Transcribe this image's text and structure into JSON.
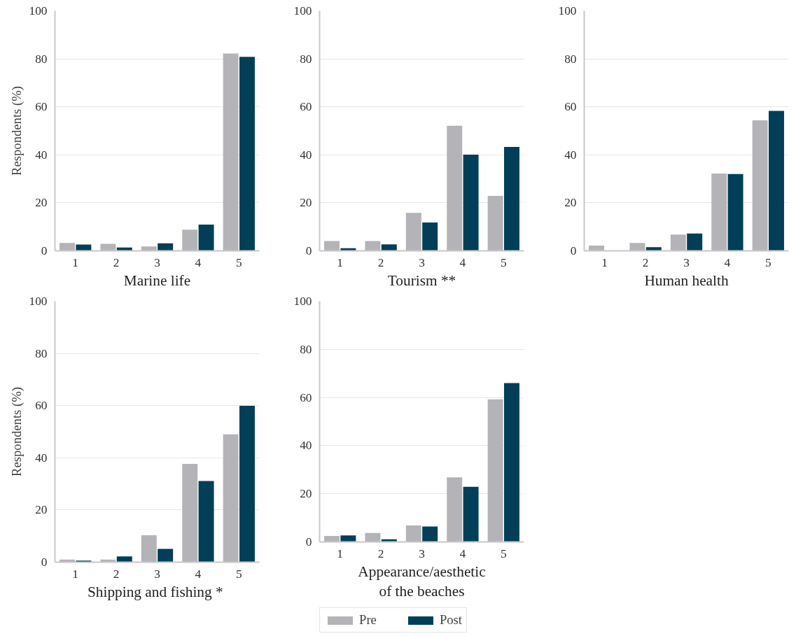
{
  "chart_data": [
    {
      "type": "bar",
      "xlabel": "Marine life",
      "ylabel": "Respondents (%)",
      "categories": [
        "1",
        "2",
        "3",
        "4",
        "5"
      ],
      "ylim": [
        0,
        100
      ],
      "yticks": [
        0,
        20,
        40,
        60,
        80,
        100
      ],
      "grid": "y",
      "series": [
        {
          "color": "#b4b4b8",
          "values": [
            3.3,
            2.9,
            1.8,
            8.8,
            82.2
          ]
        },
        {
          "color": "#003f57",
          "values": [
            2.6,
            1.4,
            3.1,
            10.9,
            80.8
          ]
        }
      ]
    },
    {
      "type": "bar",
      "xlabel": "Tourism **",
      "categories": [
        "1",
        "2",
        "3",
        "4",
        "5"
      ],
      "ylim": [
        0,
        100
      ],
      "yticks": [
        0,
        20,
        40,
        60,
        80,
        100
      ],
      "grid": "y",
      "series": [
        {
          "color": "#b4b4b8",
          "values": [
            4.1,
            4.1,
            15.8,
            52.1,
            22.9
          ]
        },
        {
          "color": "#003f57",
          "values": [
            1.1,
            2.7,
            11.8,
            40.1,
            43.3
          ]
        }
      ]
    },
    {
      "type": "bar",
      "xlabel": "Human health",
      "categories": [
        "1",
        "2",
        "3",
        "4",
        "5"
      ],
      "ylim": [
        0,
        100
      ],
      "yticks": [
        0,
        20,
        40,
        60,
        80,
        100
      ],
      "grid": "y",
      "series": [
        {
          "color": "#b4b4b8",
          "values": [
            2.2,
            3.3,
            6.8,
            32.2,
            54.4
          ]
        },
        {
          "color": "#003f57",
          "values": [
            0,
            1.5,
            7.2,
            32.0,
            58.3
          ]
        }
      ]
    },
    {
      "type": "bar",
      "xlabel": "Shipping and fishing  *",
      "ylabel": "Respondents (%)",
      "categories": [
        "1",
        "2",
        "3",
        "4",
        "5"
      ],
      "ylim": [
        0,
        100
      ],
      "yticks": [
        0,
        20,
        40,
        60,
        80,
        100
      ],
      "grid": "y",
      "series": [
        {
          "color": "#b4b4b8",
          "values": [
            1.0,
            1.0,
            10.3,
            37.7,
            49.0
          ]
        },
        {
          "color": "#003f57",
          "values": [
            0.6,
            2.2,
            5.1,
            31.1,
            59.9
          ]
        }
      ]
    },
    {
      "type": "bar",
      "xlabel": "Appearance/aesthetic\nof the beaches",
      "categories": [
        "1",
        "2",
        "3",
        "4",
        "5"
      ],
      "ylim": [
        0,
        100
      ],
      "yticks": [
        0,
        20,
        40,
        60,
        80,
        100
      ],
      "grid": "y",
      "legend": "bottom",
      "series": [
        {
          "name": "Pre",
          "color": "#b4b4b8",
          "values": [
            2.5,
            3.7,
            6.8,
            26.8,
            59.2
          ]
        },
        {
          "name": "Post",
          "color": "#003f57",
          "values": [
            2.7,
            1.1,
            6.4,
            22.9,
            66.0
          ]
        }
      ]
    }
  ]
}
